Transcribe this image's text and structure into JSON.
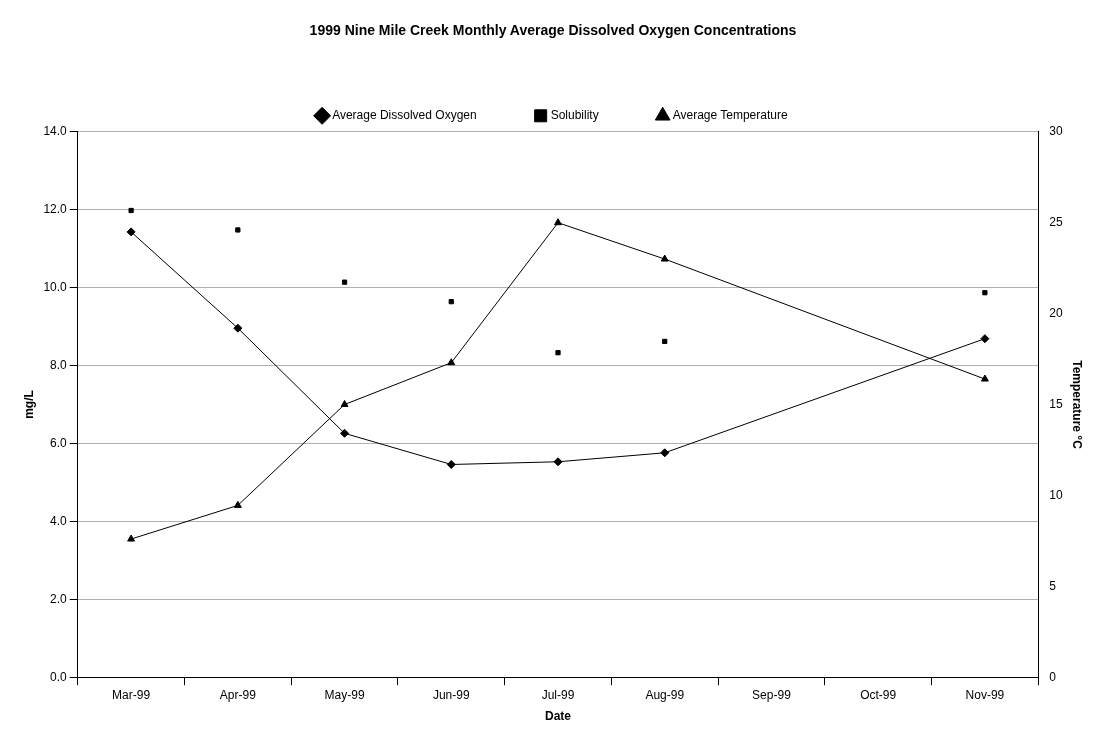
{
  "chart_data": {
    "type": "line",
    "title": "1999 Nine Mile Creek Monthly Average Dissolved Oxygen Concentrations",
    "xlabel": "Date",
    "ylabel": "mg/L",
    "y2label": "Temperature °C",
    "categories": [
      "Mar-99",
      "Apr-99",
      "May-99",
      "Jun-99",
      "Jul-99",
      "Aug-99",
      "Sep-99",
      "Oct-99",
      "Nov-99"
    ],
    "series": [
      {
        "name": "Average Dissolved Oxygen",
        "type": "line",
        "color": "#000000",
        "marker": "diamond",
        "values": [
          11.43,
          8.96,
          6.26,
          5.46,
          5.53,
          5.76,
          null,
          null,
          8.69
        ]
      },
      {
        "name": "Solubility",
        "type": "scatter",
        "color": "#000000",
        "marker": "square",
        "values": [
          11.98,
          11.48,
          10.14,
          9.64,
          8.33,
          8.62,
          null,
          null,
          9.87
        ]
      },
      {
        "name": "Average Temperature",
        "type": "line",
        "color": "#000000",
        "marker": "triangle",
        "axis": "y2",
        "values": [
          7.6,
          9.45,
          15.0,
          17.3,
          25.0,
          23.0,
          null,
          null,
          16.4
        ]
      }
    ],
    "ylim": [
      0,
      14
    ],
    "yticks": [
      {
        "value": 0,
        "label": "0.0"
      },
      {
        "value": 2,
        "label": "2.0"
      },
      {
        "value": 4,
        "label": "4.0"
      },
      {
        "value": 6,
        "label": "6.0"
      },
      {
        "value": 8,
        "label": "8.0"
      },
      {
        "value": 10,
        "label": "10.0"
      },
      {
        "value": 12,
        "label": "12.0"
      },
      {
        "value": 14,
        "label": "14.0"
      }
    ],
    "y2lim": [
      0,
      30
    ],
    "y2ticks": [
      0,
      5,
      10,
      15,
      20,
      25,
      30
    ],
    "grid": "y",
    "legend": "top"
  }
}
